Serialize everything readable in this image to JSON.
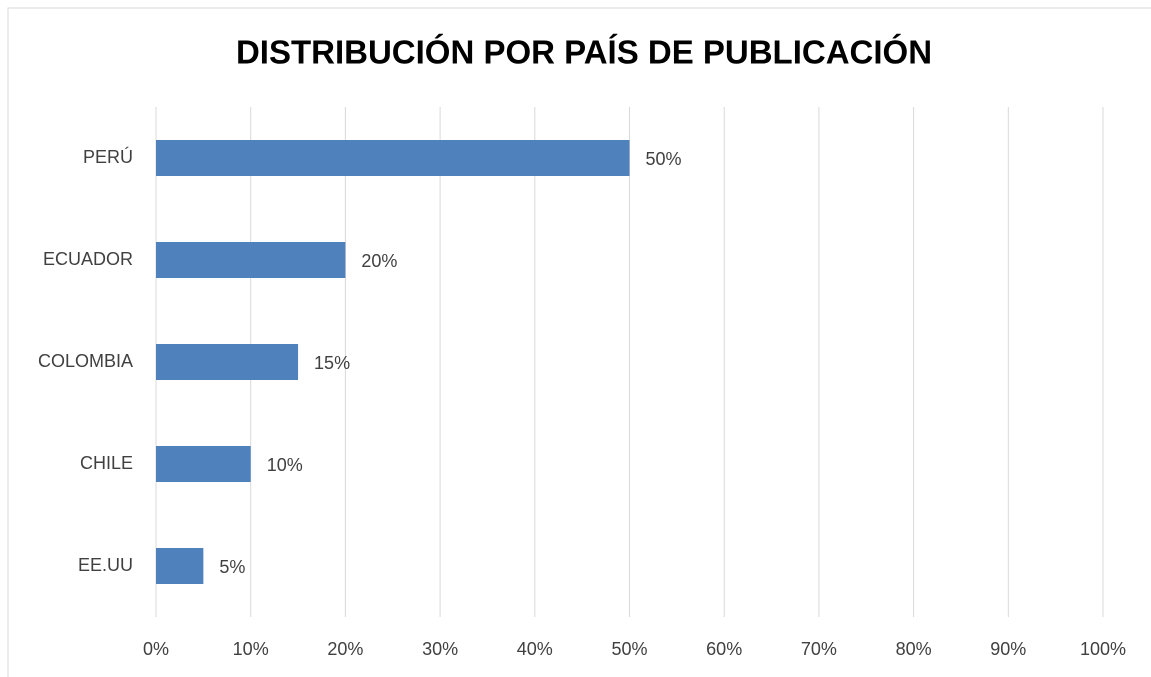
{
  "chart_data": {
    "type": "bar",
    "orientation": "horizontal",
    "title": "DISTRIBUCIÓN POR PAÍS DE PUBLICACIÓN",
    "categories": [
      "PERÚ",
      "ECUADOR",
      "COLOMBIA",
      "CHILE",
      "EE.UU"
    ],
    "values": [
      50,
      20,
      15,
      10,
      5
    ],
    "value_labels": [
      "50%",
      "20%",
      "15%",
      "10%",
      "5%"
    ],
    "color": "#4f81bd",
    "xlim": [
      0,
      100
    ],
    "xticks": [
      {
        "value": 0,
        "label": "0%"
      },
      {
        "value": 10,
        "label": "10%"
      },
      {
        "value": 20,
        "label": "20%"
      },
      {
        "value": 30,
        "label": "30%"
      },
      {
        "value": 40,
        "label": "40%"
      },
      {
        "value": 50,
        "label": "50%"
      },
      {
        "value": 60,
        "label": "60%"
      },
      {
        "value": 70,
        "label": "70%"
      },
      {
        "value": 80,
        "label": "80%"
      },
      {
        "value": 90,
        "label": "90%"
      },
      {
        "value": 100,
        "label": "100%"
      }
    ],
    "grid": true
  }
}
